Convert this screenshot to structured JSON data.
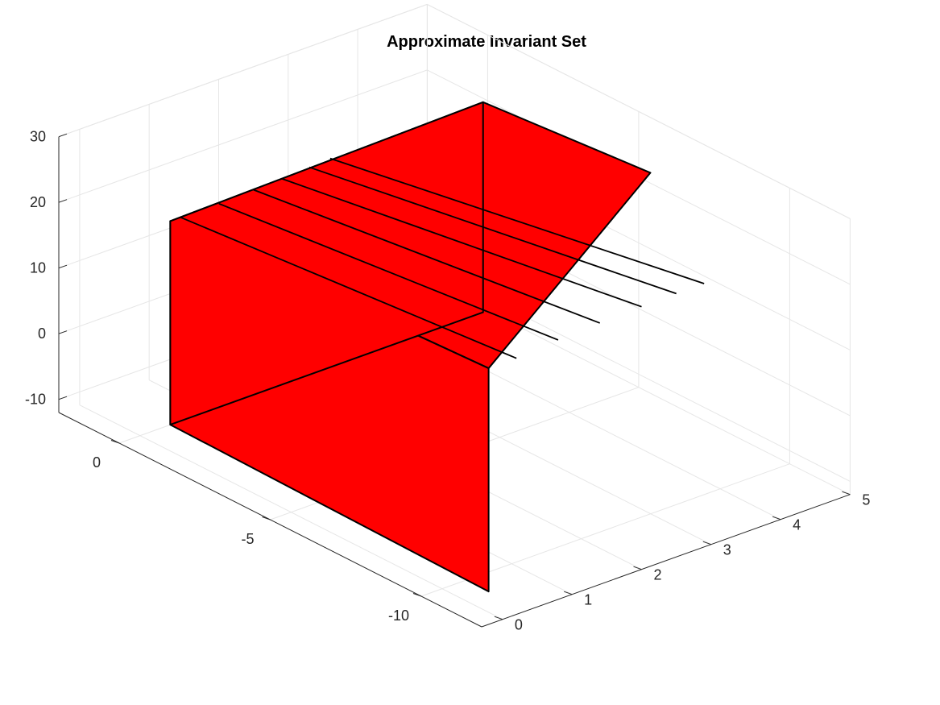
{
  "chart_data": {
    "type": "surface3d",
    "title": "Approximate Invariant Set",
    "xlabel": "",
    "ylabel": "",
    "zlabel": "",
    "x_ticks": [
      -10,
      -5,
      0
    ],
    "y_ticks": [
      0,
      1,
      2,
      3,
      4,
      5
    ],
    "z_ticks": [
      -10,
      0,
      10,
      20,
      30
    ],
    "xlim": [
      -12,
      2
    ],
    "ylim": [
      -0.3,
      5
    ],
    "zlim": [
      -12,
      30
    ],
    "grid": true,
    "box": false,
    "colors": {
      "face": "#ff0000",
      "edge": "#000000",
      "grid": "#e6e6e6",
      "axis": "#262626"
    },
    "faces": [
      {
        "name": "top-face",
        "vertices": [
          [
            -12.0,
            -0.2,
            27.0
          ],
          [
            -7.0,
            4.3,
            28.0
          ],
          [
            -1.0,
            4.5,
            24.0
          ],
          [
            -1.0,
            0.0,
            23.0
          ]
        ]
      },
      {
        "name": "front-left-face",
        "vertices": [
          [
            -12.0,
            -0.2,
            27.0
          ],
          [
            -1.0,
            0.0,
            23.0
          ],
          [
            -1.0,
            0.0,
            -8.0
          ],
          [
            -12.0,
            -0.2,
            -7.0
          ]
        ]
      },
      {
        "name": "front-right-face",
        "vertices": [
          [
            -1.0,
            0.0,
            23.0
          ],
          [
            -1.0,
            4.5,
            24.0
          ],
          [
            -1.0,
            4.5,
            -8.0
          ],
          [
            -1.0,
            0.0,
            -8.0
          ]
        ]
      }
    ],
    "ridge_lines": [
      [
        [
          -12.0,
          0.2,
          27.0
        ],
        [
          -1.0,
          0.15,
          23.0
        ]
      ],
      [
        [
          -12.0,
          0.8,
          27.5
        ],
        [
          -1.0,
          0.7,
          23.0
        ]
      ],
      [
        [
          -12.0,
          1.4,
          27.8
        ],
        [
          -1.0,
          1.2,
          23.2
        ]
      ],
      [
        [
          -12.0,
          2.0,
          28.0
        ],
        [
          -1.0,
          1.6,
          23.4
        ]
      ],
      [
        [
          -12.0,
          2.5,
          28.1
        ],
        [
          -1.0,
          2.0,
          23.6
        ]
      ],
      [
        [
          -12.0,
          2.9,
          28.1
        ],
        [
          -1.0,
          2.3,
          23.8
        ]
      ]
    ]
  }
}
